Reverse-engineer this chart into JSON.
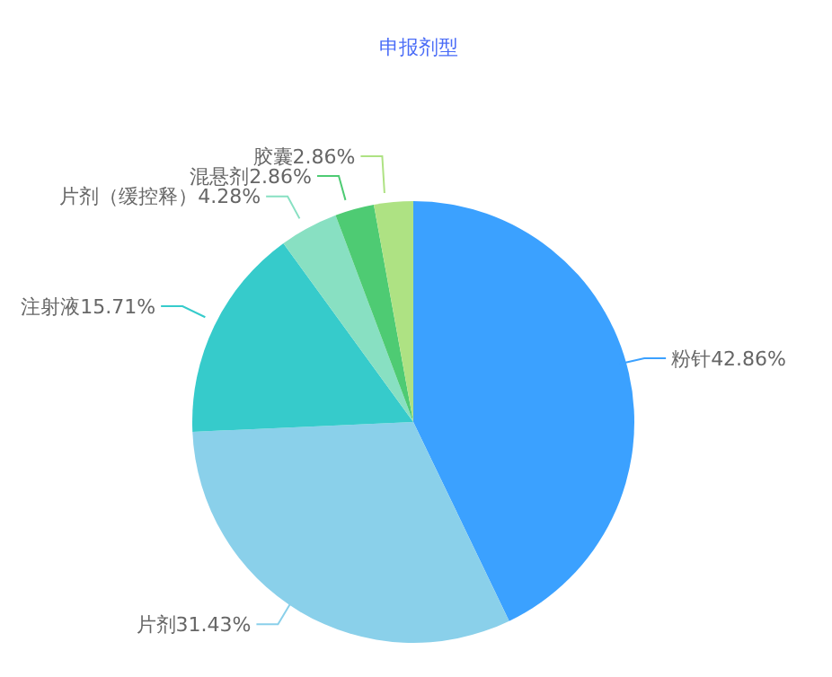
{
  "chart_data": {
    "type": "pie",
    "title": "申报剂型",
    "categories": [
      "粉针",
      "片剂",
      "注射液",
      "片剂（缓控释）",
      "混悬剂",
      "胶囊"
    ],
    "values": [
      42.86,
      31.43,
      15.71,
      4.28,
      2.86,
      2.86
    ],
    "value_labels": [
      "42.86%",
      "31.43%",
      "15.71%",
      "4.28%",
      "2.86%",
      "2.86%"
    ],
    "colors": [
      "#3ba1ff",
      "#8ad0ea",
      "#36cbcb",
      "#88e0c2",
      "#4ecb73",
      "#aee283"
    ],
    "legend": false
  }
}
